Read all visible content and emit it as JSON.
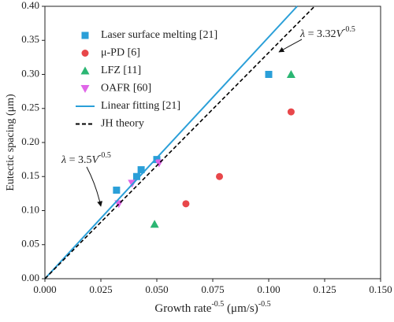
{
  "chart_data": {
    "type": "scatter",
    "x_label": [
      "Growth rate",
      "-0.5",
      " (μm/s)",
      "-0.5"
    ],
    "y_label": "Eutectic spacing (μm)",
    "xlim": [
      0,
      0.15
    ],
    "ylim": [
      0,
      0.4
    ],
    "xticks": [
      {
        "value": 0,
        "label": "0.000"
      },
      {
        "value": 0.025,
        "label": "0.025"
      },
      {
        "value": 0.05,
        "label": "0.050"
      },
      {
        "value": 0.075,
        "label": "0.075"
      },
      {
        "value": 0.1,
        "label": "0.100"
      },
      {
        "value": 0.125,
        "label": "0.125"
      },
      {
        "value": 0.15,
        "label": "0.150"
      }
    ],
    "yticks": [
      {
        "value": 0,
        "label": "0.00"
      },
      {
        "value": 0.05,
        "label": "0.05"
      },
      {
        "value": 0.1,
        "label": "0.10"
      },
      {
        "value": 0.15,
        "label": "0.15"
      },
      {
        "value": 0.2,
        "label": "0.20"
      },
      {
        "value": 0.25,
        "label": "0.25"
      },
      {
        "value": 0.3,
        "label": "0.30"
      },
      {
        "value": 0.35,
        "label": "0.35"
      },
      {
        "value": 0.4,
        "label": "0.40"
      }
    ],
    "legend": "upper left",
    "series": [
      {
        "name": "Laser surface melting [21]",
        "color": "#2a9fd8",
        "marker": "square",
        "x": [
          0.032,
          0.041,
          0.043,
          0.05,
          0.1
        ],
        "values": [
          0.13,
          0.15,
          0.16,
          0.175,
          0.3
        ]
      },
      {
        "name": "μ-PD [6]",
        "color": "#e8474a",
        "marker": "circle",
        "x": [
          0.063,
          0.078,
          0.11
        ],
        "values": [
          0.11,
          0.15,
          0.245
        ]
      },
      {
        "name": "LFZ [11]",
        "color": "#2bb673",
        "marker": "triangle-up",
        "x": [
          0.049,
          0.11
        ],
        "values": [
          0.08,
          0.3
        ]
      },
      {
        "name": "OAFR [60]",
        "color": "#e066e8",
        "marker": "triangle-down",
        "x": [
          0.033,
          0.039,
          0.051
        ],
        "values": [
          0.11,
          0.14,
          0.17
        ]
      },
      {
        "name": "Linear fitting [21]",
        "color": "#2a9fd8",
        "line": "solid",
        "x": [
          0,
          0.1127
        ],
        "values": [
          0,
          0.4
        ]
      },
      {
        "name": "JH theory",
        "color": "#000000",
        "line": "dashed",
        "x": [
          0,
          0.1205
        ],
        "values": [
          0,
          0.4
        ]
      }
    ],
    "annotations": [
      {
        "parts": [
          "λ",
          " = 3.32",
          "V",
          "-0.5"
        ]
      },
      {
        "parts": [
          "λ",
          " = 3.5",
          "V",
          "-0.5"
        ]
      }
    ]
  }
}
